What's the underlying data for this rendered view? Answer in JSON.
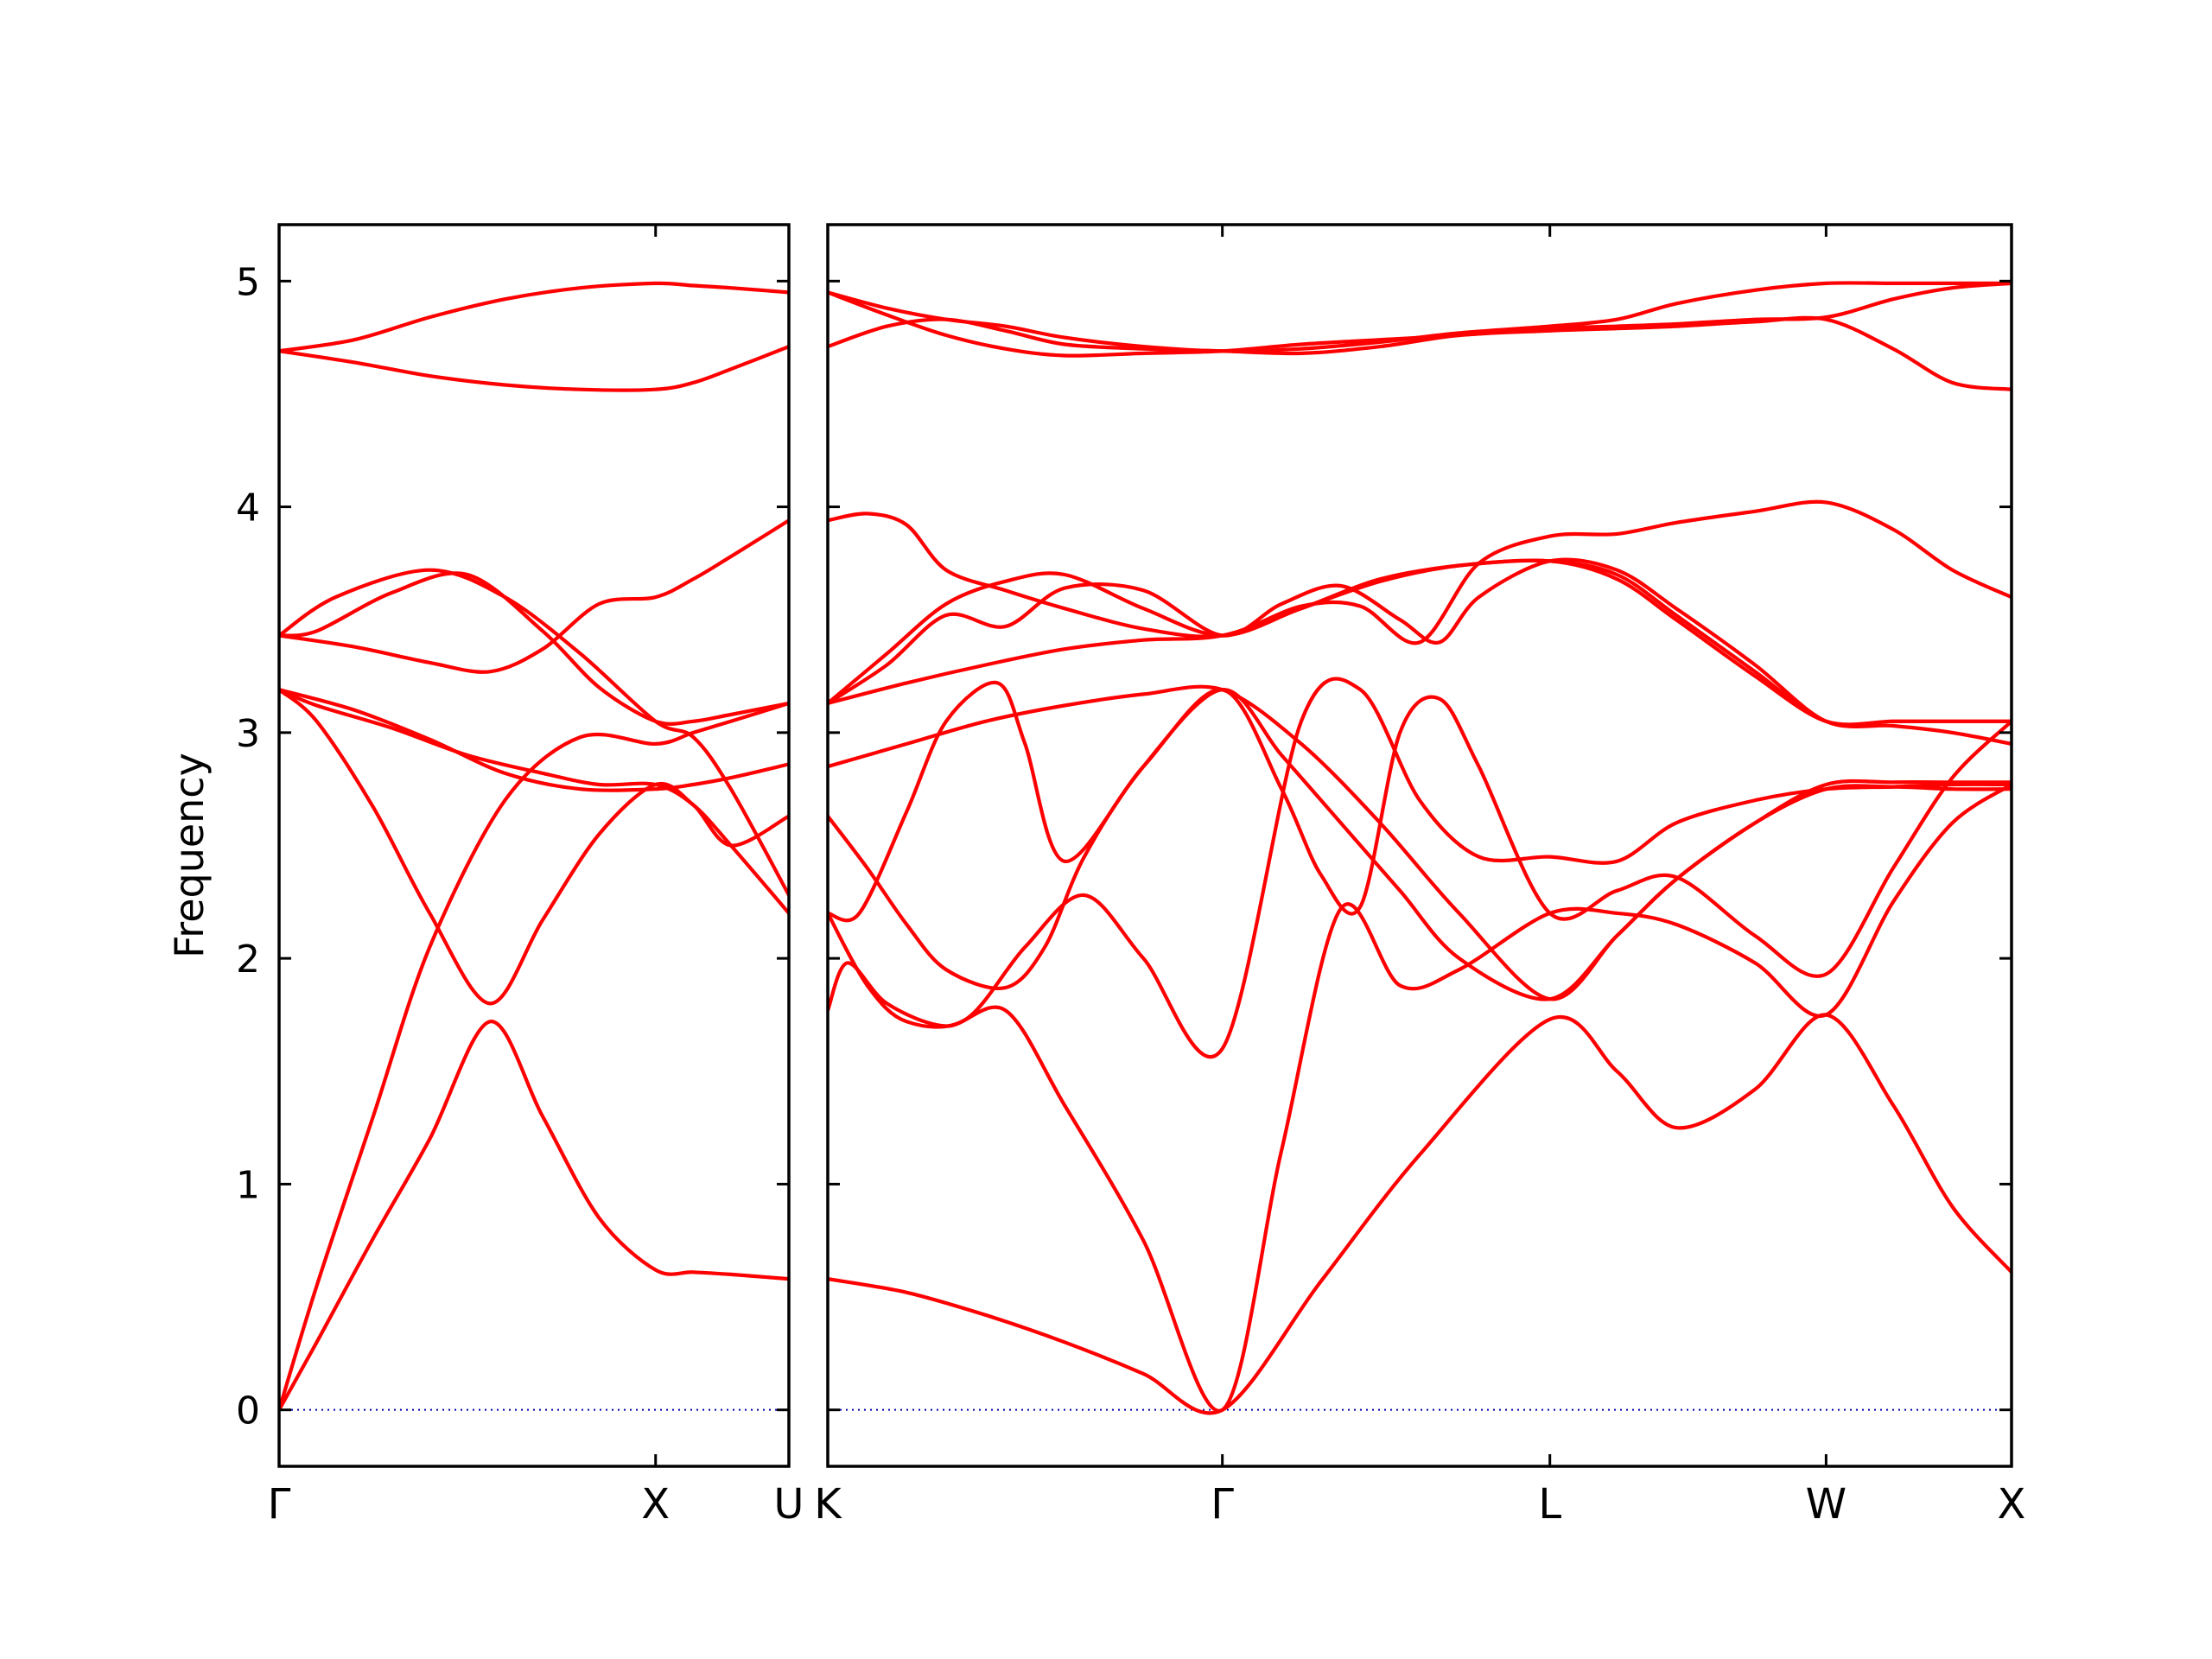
{
  "chart_data": {
    "type": "line",
    "ylabel": "Frequency",
    "ylim": [
      -0.25,
      5.25
    ],
    "yticks": [
      0,
      1,
      2,
      3,
      4,
      5
    ],
    "line_color": "#ff0000",
    "zero_line_color": "#0000aa",
    "grid": false,
    "panels": [
      {
        "name": "Gamma-X-U",
        "xlim": [
          0,
          1.354
        ],
        "high_symmetry_points": [
          {
            "label": "Γ",
            "x": 0
          },
          {
            "label": "X",
            "x": 1.0
          },
          {
            "label": "U",
            "x": 1.354
          }
        ],
        "bands": [
          {
            "x": [
              0,
              0.1,
              0.25,
              0.4,
              0.56,
              0.7,
              0.85,
              1.0,
              1.1,
              1.2,
              1.354
            ],
            "y": [
              0,
              0.3,
              0.76,
              1.2,
              1.72,
              1.3,
              0.85,
              0.62,
              0.61,
              0.6,
              0.58
            ]
          },
          {
            "x": [
              0,
              0.1,
              0.25,
              0.4,
              0.6,
              0.8,
              1.0,
              1.1,
              1.2,
              1.354
            ],
            "y": [
              0,
              0.55,
              1.3,
              2.05,
              2.7,
              2.98,
              2.95,
              3.0,
              3.05,
              3.13
            ]
          },
          {
            "x": [
              0,
              0.1,
              0.25,
              0.4,
              0.56,
              0.7,
              0.85,
              1.0,
              1.1,
              1.2,
              1.354
            ],
            "y": [
              3.19,
              3.05,
              2.67,
              2.2,
              1.8,
              2.17,
              2.55,
              2.77,
              2.68,
              2.5,
              2.2
            ]
          },
          {
            "x": [
              0,
              0.2,
              0.4,
              0.6,
              0.8,
              1.0,
              1.1,
              1.2,
              1.354
            ],
            "y": [
              3.19,
              3.1,
              2.97,
              2.82,
              2.75,
              2.75,
              2.77,
              2.8,
              2.86
            ]
          },
          {
            "x": [
              0,
              0.2,
              0.4,
              0.56,
              0.7,
              0.85,
              1.0,
              1.1,
              1.2,
              1.354
            ],
            "y": [
              3.43,
              3.38,
              3.31,
              3.27,
              3.37,
              3.57,
              3.6,
              3.68,
              3.78,
              3.94
            ]
          },
          {
            "x": [
              0,
              0.15,
              0.4,
              0.6,
              0.8,
              1.0,
              1.1,
              1.2,
              1.354
            ],
            "y": [
              3.43,
              3.6,
              3.72,
              3.6,
              3.35,
              3.05,
              2.98,
              2.75,
              2.28
            ]
          },
          {
            "x": [
              0,
              0.1,
              0.3,
              0.5,
              0.7,
              0.85,
              1.0,
              1.1,
              1.2,
              1.354
            ],
            "y": [
              3.43,
              3.45,
              3.62,
              3.7,
              3.45,
              3.2,
              3.05,
              3.05,
              3.08,
              3.13
            ]
          },
          {
            "x": [
              0,
              0.1,
              0.3,
              0.5,
              0.7,
              0.85,
              1.0,
              1.1,
              1.2,
              1.354
            ],
            "y": [
              3.19,
              3.12,
              3.02,
              2.9,
              2.82,
              2.77,
              2.77,
              2.68,
              2.5,
              2.63
            ]
          },
          {
            "x": [
              0,
              0.2,
              0.4,
              0.6,
              0.8,
              1.0,
              1.1,
              1.2,
              1.354
            ],
            "y": [
              4.69,
              4.64,
              4.58,
              4.54,
              4.52,
              4.52,
              4.55,
              4.61,
              4.71
            ]
          },
          {
            "x": [
              0,
              0.2,
              0.4,
              0.6,
              0.8,
              1.0,
              1.1,
              1.2,
              1.354
            ],
            "y": [
              4.69,
              4.74,
              4.84,
              4.92,
              4.97,
              4.99,
              4.98,
              4.97,
              4.95
            ]
          }
        ]
      },
      {
        "name": "K-Gamma-L-W-X",
        "xlim": [
          0,
          3.0
        ],
        "high_symmetry_points": [
          {
            "label": "K",
            "x": 0
          },
          {
            "label": "Γ",
            "x": 1.0
          },
          {
            "label": "L",
            "x": 1.83
          },
          {
            "label": "W",
            "x": 2.53
          },
          {
            "label": "X",
            "x": 3.0
          }
        ],
        "bands": [
          {
            "x": [
              0,
              0.2,
              0.4,
              0.6,
              0.8,
              1.0,
              1.25,
              1.5,
              1.83,
              2.0,
              2.15,
              2.35,
              2.53,
              2.7,
              2.85,
              3.0
            ],
            "y": [
              0.58,
              0.52,
              0.42,
              0.3,
              0.16,
              0,
              0.57,
              1.13,
              1.73,
              1.5,
              1.25,
              1.42,
              1.75,
              1.35,
              0.9,
              0.61
            ]
          },
          {
            "x": [
              0,
              0.05,
              0.15,
              0.3,
              0.45,
              0.6,
              0.8,
              1.0,
              1.15,
              1.3,
              1.45,
              1.6,
              1.83,
              2.0,
              2.15,
              2.35,
              2.53,
              2.7,
              2.85,
              3.0
            ],
            "y": [
              1.77,
              1.98,
              1.8,
              1.7,
              1.77,
              1.35,
              0.75,
              0,
              1.15,
              2.22,
              1.88,
              1.95,
              2.2,
              2.2,
              2.15,
              1.98,
              1.75,
              2.25,
              2.6,
              2.77
            ]
          },
          {
            "x": [
              0,
              0.1,
              0.2,
              0.35,
              0.5,
              0.65,
              0.8,
              1.0,
              1.2,
              1.35,
              1.5,
              1.65,
              1.83,
              2.0,
              2.15,
              2.35,
              2.53,
              2.7,
              2.85,
              3.0
            ],
            "y": [
              2.2,
              1.88,
              1.72,
              1.73,
              2.05,
              2.28,
              2.0,
              1.6,
              3.05,
              3.19,
              2.7,
              2.45,
              2.45,
              2.43,
              2.6,
              2.7,
              2.75,
              2.76,
              2.77,
              2.77
            ]
          },
          {
            "x": [
              0,
              0.1,
              0.2,
              0.3,
              0.45,
              0.55,
              0.65,
              0.8,
              1.0,
              1.15,
              1.3,
              1.45,
              1.6,
              1.83,
              2.0,
              2.15,
              2.35,
              2.53,
              2.7,
              2.85,
              3.0
            ],
            "y": [
              2.63,
              2.4,
              2.15,
              1.95,
              1.87,
              2.05,
              2.45,
              2.85,
              3.19,
              2.9,
              2.6,
              2.3,
              2.0,
              1.82,
              2.1,
              2.35,
              2.6,
              2.75,
              2.76,
              2.75,
              2.75
            ]
          },
          {
            "x": [
              0,
              0.08,
              0.2,
              0.3,
              0.43,
              0.5,
              0.6,
              0.8,
              1.0,
              1.15,
              1.25,
              1.35,
              1.45,
              1.55,
              1.65,
              1.83,
              2.0,
              2.15,
              2.35,
              2.53,
              2.7,
              2.85,
              3.0
            ],
            "y": [
              2.2,
              2.2,
              2.65,
              3.05,
              3.22,
              2.95,
              2.43,
              2.85,
              3.19,
              2.75,
              2.37,
              2.23,
              3.0,
              3.15,
              2.85,
              2.2,
              2.3,
              2.36,
              2.1,
              1.93,
              2.4,
              2.8,
              3.05
            ]
          },
          {
            "x": [
              0,
              0.2,
              0.4,
              0.6,
              0.8,
              1.0,
              1.2,
              1.4,
              1.6,
              1.83,
              2.0,
              2.15,
              2.35,
              2.53,
              2.7,
              2.85,
              3.0
            ],
            "y": [
              2.85,
              2.95,
              3.05,
              3.12,
              3.17,
              3.19,
              2.95,
              2.6,
              2.2,
              1.82,
              2.1,
              2.35,
              2.6,
              2.77,
              2.78,
              2.78,
              2.78
            ]
          },
          {
            "x": [
              0,
              0.2,
              0.4,
              0.6,
              0.8,
              1.0,
              1.2,
              1.4,
              1.6,
              1.83,
              2.0,
              2.15,
              2.35,
              2.53,
              2.7,
              2.85,
              3.0
            ],
            "y": [
              3.13,
              3.22,
              3.3,
              3.37,
              3.41,
              3.43,
              3.55,
              3.68,
              3.74,
              3.76,
              3.68,
              3.5,
              3.25,
              3.05,
              3.05,
              3.05,
              3.05
            ]
          },
          {
            "x": [
              0,
              0.15,
              0.3,
              0.45,
              0.6,
              0.8,
              1.0,
              1.15,
              1.3,
              1.45,
              1.55,
              1.65,
              1.83,
              2.0,
              2.15,
              2.35,
              2.53,
              2.7,
              2.85,
              3.0
            ],
            "y": [
              3.13,
              3.3,
              3.52,
              3.47,
              3.64,
              3.63,
              3.43,
              3.57,
              3.65,
              3.5,
              3.4,
              3.6,
              3.76,
              3.72,
              3.55,
              3.3,
              3.05,
              3.03,
              3.0,
              2.95
            ]
          },
          {
            "x": [
              0,
              0.15,
              0.3,
              0.45,
              0.6,
              0.8,
              1.0,
              1.2,
              1.4,
              1.6,
              1.83,
              2.0,
              2.15,
              2.35,
              2.53,
              2.7,
              2.85,
              3.0
            ],
            "y": [
              3.13,
              3.35,
              3.57,
              3.67,
              3.7,
              3.55,
              3.43,
              3.55,
              3.67,
              3.74,
              3.76,
              3.7,
              3.52,
              3.27,
              3.05,
              3.05,
              3.05,
              3.05
            ]
          },
          {
            "x": [
              0,
              0.1,
              0.2,
              0.3,
              0.45,
              0.6,
              0.8,
              1.0,
              1.2,
              1.35,
              1.5,
              1.65,
              1.83,
              2.0,
              2.15,
              2.35,
              2.53,
              2.7,
              2.85,
              3.0
            ],
            "y": [
              3.94,
              3.97,
              3.92,
              3.72,
              3.63,
              3.55,
              3.46,
              3.43,
              3.56,
              3.56,
              3.4,
              3.75,
              3.87,
              3.88,
              3.93,
              3.98,
              4.02,
              3.9,
              3.72,
              3.6
            ]
          },
          {
            "x": [
              0,
              0.15,
              0.3,
              0.45,
              0.6,
              0.8,
              1.0,
              1.2,
              1.4,
              1.6,
              1.83,
              2.0,
              2.15,
              2.35,
              2.53,
              2.7,
              2.85,
              3.0
            ],
            "y": [
              4.71,
              4.8,
              4.83,
              4.78,
              4.72,
              4.7,
              4.69,
              4.68,
              4.71,
              4.76,
              4.78,
              4.79,
              4.8,
              4.82,
              4.83,
              4.7,
              4.55,
              4.52
            ]
          },
          {
            "x": [
              0,
              0.15,
              0.3,
              0.45,
              0.6,
              0.8,
              1.0,
              1.2,
              1.4,
              1.6,
              1.83,
              2.0,
              2.15,
              2.35,
              2.53,
              2.7,
              2.85,
              3.0
            ],
            "y": [
              4.95,
              4.85,
              4.76,
              4.7,
              4.67,
              4.68,
              4.69,
              4.72,
              4.74,
              4.76,
              4.79,
              4.8,
              4.81,
              4.83,
              4.84,
              4.92,
              4.97,
              4.99
            ]
          },
          {
            "x": [
              0,
              0.15,
              0.3,
              0.45,
              0.6,
              0.8,
              1.0,
              1.2,
              1.4,
              1.6,
              1.83,
              2.0,
              2.15,
              2.35,
              2.53,
              2.7,
              2.85,
              3.0
            ],
            "y": [
              4.95,
              4.88,
              4.83,
              4.8,
              4.75,
              4.71,
              4.69,
              4.7,
              4.73,
              4.77,
              4.8,
              4.83,
              4.9,
              4.96,
              4.99,
              4.99,
              4.99,
              4.99
            ]
          }
        ]
      }
    ]
  }
}
